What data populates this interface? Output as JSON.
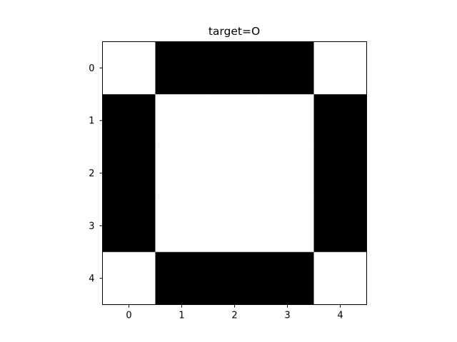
{
  "chart_data": {
    "type": "heatmap",
    "title": "target=O",
    "xlabel": "",
    "ylabel": "",
    "x_ticks": [
      "0",
      "1",
      "2",
      "3",
      "4"
    ],
    "y_ticks": [
      "0",
      "1",
      "2",
      "3",
      "4"
    ],
    "grid": false,
    "colormap": "gray_r",
    "colors": {
      "on": "#000000",
      "off": "#ffffff",
      "axes": "#000000"
    },
    "matrix": [
      [
        0,
        1,
        1,
        1,
        0
      ],
      [
        1,
        0,
        0,
        0,
        1
      ],
      [
        1,
        0,
        0,
        0,
        1
      ],
      [
        1,
        0,
        0,
        0,
        1
      ],
      [
        0,
        1,
        1,
        1,
        0
      ]
    ]
  }
}
